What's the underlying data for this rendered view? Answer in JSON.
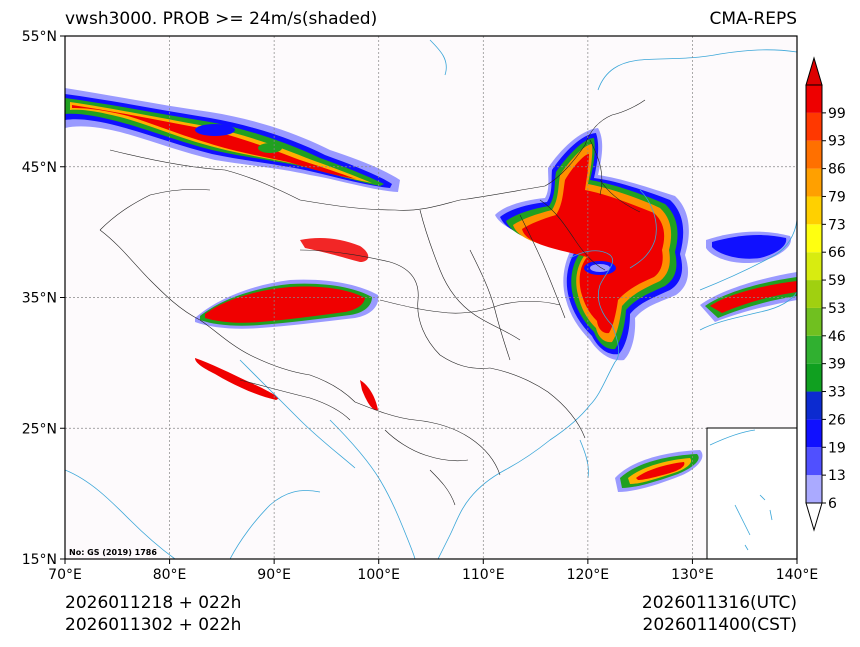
{
  "title": {
    "left": "vwsh3000. PROB >= 24m/s(shaded)",
    "right": "CMA-REPS"
  },
  "footer": {
    "init_line1": "2026011218  +  022h",
    "init_line2": "2026011302  +  022h",
    "valid_utc": "2026011316(UTC)",
    "valid_cst": "2026011400(CST)"
  },
  "map": {
    "lon_range": [
      70,
      140
    ],
    "lat_range": [
      15,
      55
    ],
    "lon_ticks": [
      {
        "value": 70,
        "label": "70°E"
      },
      {
        "value": 80,
        "label": "80°E"
      },
      {
        "value": 90,
        "label": "90°E"
      },
      {
        "value": 100,
        "label": "100°E"
      },
      {
        "value": 110,
        "label": "110°E"
      },
      {
        "value": 120,
        "label": "120°E"
      },
      {
        "value": 130,
        "label": "130°E"
      },
      {
        "value": 140,
        "label": "140°E"
      }
    ],
    "lat_ticks": [
      {
        "value": 15,
        "label": "15°N"
      },
      {
        "value": 25,
        "label": "25°N"
      },
      {
        "value": 35,
        "label": "35°N"
      },
      {
        "value": 45,
        "label": "45°N"
      },
      {
        "value": 55,
        "label": "55°N"
      }
    ],
    "approval_note": "No: GS (2019) 1786",
    "inset": "South China Sea islands"
  },
  "colorbar": {
    "labels": [
      "6",
      "13",
      "19",
      "26",
      "33",
      "39",
      "46",
      "53",
      "59",
      "66",
      "73",
      "79",
      "86",
      "93",
      "99"
    ],
    "colors": [
      "#aaaaff",
      "#5050ff",
      "#1010ff",
      "#0c2bd0",
      "#10a020",
      "#30b030",
      "#70c020",
      "#a0d010",
      "#d8ec10",
      "#ffff10",
      "#ffd000",
      "#ffa000",
      "#ff7000",
      "#ff3800",
      "#ee0000"
    ],
    "over_color": "#dd0000",
    "under_color": "#ffffff"
  },
  "colors": {
    "coast": "#3aa6d8",
    "border": "#222222",
    "grid": "#888888",
    "background": "#fdfafc"
  }
}
